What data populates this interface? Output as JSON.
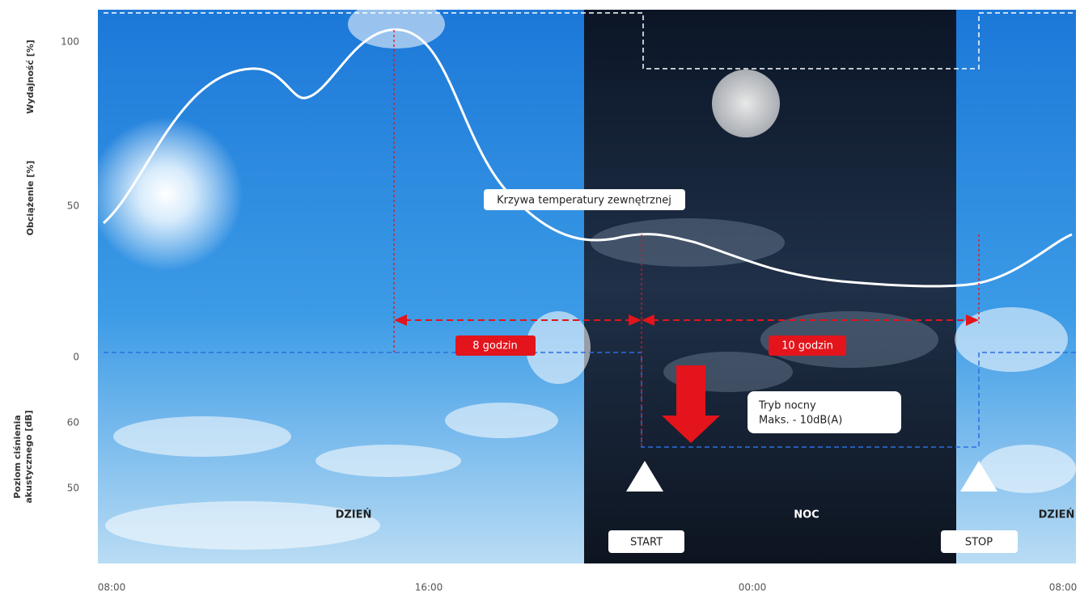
{
  "axes": {
    "left_labels": [
      "Wydajność [%]",
      "Obciążenie [%]",
      "Poziom ciśnienia",
      "akustycznego [dB]"
    ],
    "ticks": [
      "100",
      "50",
      "0",
      "60",
      "50"
    ],
    "times": [
      "08:00",
      "16:00",
      "00:00",
      "08:00"
    ]
  },
  "annotations": {
    "curve": "Krzywa temperatury zewnętrznej",
    "day_span": "8 godzin",
    "night_span": "10 godzin",
    "night_mode": [
      "Tryb nocny",
      "Maks. - 10dB(A)"
    ],
    "start": "START",
    "stop": "STOP"
  },
  "periods": [
    "DZIEŃ",
    "NOC",
    "DZIEŃ"
  ]
}
